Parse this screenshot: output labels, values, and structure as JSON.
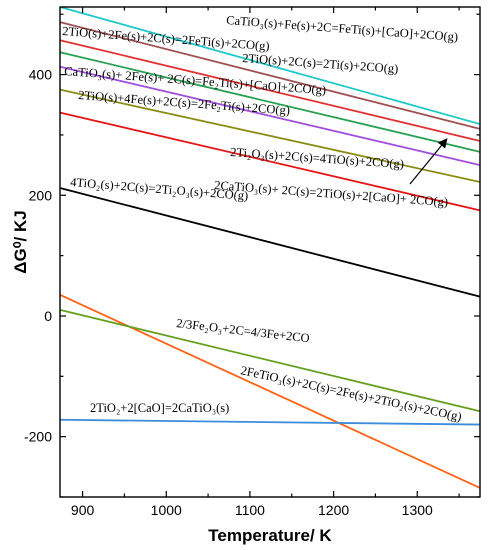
{
  "chart_data": {
    "type": "line",
    "xlabel": "Temperature/ K",
    "ylabel": "ΔG⁰/ KJ",
    "xlim": [
      873,
      1375
    ],
    "ylim": [
      -300,
      512
    ],
    "xticks": [
      900,
      1000,
      1100,
      1200,
      1300
    ],
    "yticks": [
      -200,
      0,
      200,
      400
    ],
    "grid": false,
    "series": [
      {
        "color": "#1ec8c8",
        "x": [
          873,
          1375
        ],
        "y": [
          512,
          318
        ],
        "label": "CaTiO₃(s)+Fe(s)+2C=FeTi(s)+[CaO]+2CO(g)"
      },
      {
        "color": "#a05050",
        "x": [
          873,
          1375
        ],
        "y": [
          487,
          310
        ],
        "label": ""
      },
      {
        "color": "#e03232",
        "x": [
          873,
          1375
        ],
        "y": [
          457,
          290
        ],
        "label": "2TiO(s)+2C(s)=2Ti(s)+2CO(g)"
      },
      {
        "color": "#28a050",
        "x": [
          873,
          1375
        ],
        "y": [
          437,
          272
        ],
        "label": "2TiO(s)+2Fe(s)+2C(s)=2FeTi(s)+2CO(g)"
      },
      {
        "color": "#a050dc",
        "x": [
          873,
          1375
        ],
        "y": [
          413,
          250
        ],
        "label": "CaTiO₃(s)+ 2Fe(s)+ 2C(s)=Fe₂Ti(s)+[CaO]+2CO(g)"
      },
      {
        "color": "#8c8c14",
        "x": [
          873,
          1375
        ],
        "y": [
          375,
          222
        ],
        "label": "2TiO(s)+4Fe(s)+2C(s)=2Fe₂Ti(s)+2CO(g)"
      },
      {
        "color": "#e61414",
        "x": [
          873,
          1375
        ],
        "y": [
          337,
          175
        ],
        "label": "2Ti₂O₃(s)+2C(s)=4TiO(s)+2CO(g)"
      },
      {
        "color": "#000000",
        "x": [
          873,
          1375
        ],
        "y": [
          212,
          32
        ],
        "label": "4TiO₂(s)+2C(s)=2Ti₂O₃(s)+2CO(g)"
      },
      {
        "color": "#ff6414",
        "x": [
          873,
          1375
        ],
        "y": [
          35,
          -285
        ],
        "label": "2FeTiO₃(s)+2C(s)=2Fe(s)+2TiO₂(s)+2CO(g)"
      },
      {
        "color": "#64a01e",
        "x": [
          873,
          1375
        ],
        "y": [
          10,
          -158
        ],
        "label": "2/3Fe₂O₃+2C=4/3Fe+2CO"
      },
      {
        "color": "#3c8cdc",
        "x": [
          873,
          1375
        ],
        "y": [
          -172,
          -180
        ],
        "label": "2TiO₂+2[CaO]=2CaTiO₃(s)"
      }
    ],
    "annotations": [
      {
        "text": "2CaTiO₃(s)+ 2C(s)=2TiO(s)+2[CaO]+ 2CO(g)",
        "arrow_to": "red line near 1375 K"
      }
    ]
  }
}
